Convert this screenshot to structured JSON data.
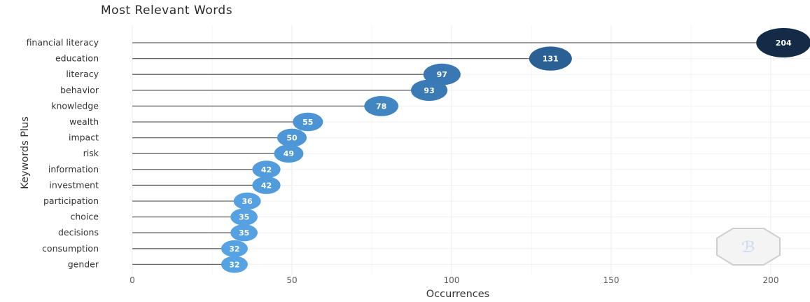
{
  "chart_data": {
    "type": "scatter",
    "title": "Most Relevant Words",
    "xlabel": "Occurrences",
    "ylabel": "Keywords Plus",
    "xlim": [
      0,
      210
    ],
    "x_ticks": [
      0,
      50,
      100,
      150,
      200
    ],
    "grid": true,
    "categories": [
      "financial literacy",
      "education",
      "literacy",
      "behavior",
      "knowledge",
      "wealth",
      "impact",
      "risk",
      "information",
      "investment",
      "participation",
      "choice",
      "decisions",
      "consumption",
      "gender"
    ],
    "values": [
      204,
      131,
      97,
      93,
      78,
      55,
      50,
      49,
      42,
      42,
      36,
      35,
      35,
      32,
      32
    ],
    "color_scale": {
      "low": "#56a3e4",
      "mid": "#2f6aa3",
      "high": "#132b46"
    }
  },
  "watermark": {
    "icon": "bibliometrix-hexagon-logo-icon"
  }
}
